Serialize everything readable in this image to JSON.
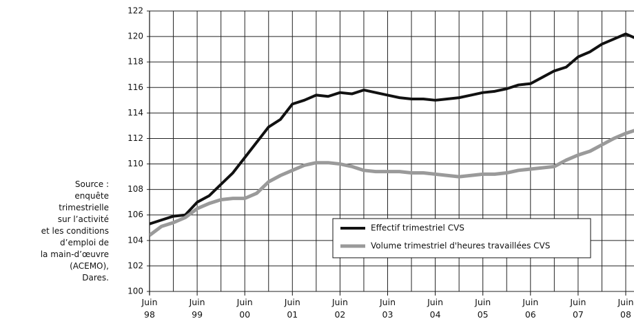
{
  "chart_data": {
    "type": "line",
    "source": "Source :\nenquête\ntrimestrielle\nsur l’activité\net les conditions\nd’emploi de\nla main-d’œuvre\n(ACEMO),\nDares.",
    "categories": [
      "Juin\n98",
      null,
      null,
      null,
      "Juin\n99",
      null,
      null,
      null,
      "Juin\n00",
      null,
      null,
      null,
      "Juin\n01",
      null,
      null,
      null,
      "Juin\n02",
      null,
      null,
      null,
      "Juin\n03",
      null,
      null,
      null,
      "Juin\n04",
      null,
      null,
      null,
      "Juin\n05",
      null,
      null,
      null,
      "Juin\n06",
      null,
      null,
      null,
      "Juin\n07",
      null,
      null,
      null,
      "Juin\n08",
      null
    ],
    "series": [
      {
        "name": "Effectif trimestriel CVS",
        "color": "#111111",
        "values": [
          105.3,
          105.6,
          105.9,
          106.0,
          107.0,
          107.5,
          108.4,
          109.3,
          110.5,
          111.7,
          112.9,
          113.5,
          114.7,
          115.0,
          115.4,
          115.3,
          115.6,
          115.5,
          115.8,
          115.6,
          115.4,
          115.2,
          115.1,
          115.1,
          115.0,
          115.1,
          115.2,
          115.4,
          115.6,
          115.7,
          115.9,
          116.2,
          116.3,
          116.8,
          117.3,
          117.6,
          118.4,
          118.8,
          119.4,
          119.8,
          120.2,
          119.8
        ]
      },
      {
        "name": "Volume trimestriel d'heures travaillées CVS",
        "color": "#9a9a9a",
        "values": [
          104.4,
          105.1,
          105.4,
          105.8,
          106.5,
          106.9,
          107.2,
          107.3,
          107.3,
          107.7,
          108.6,
          109.1,
          109.5,
          109.9,
          110.1,
          110.1,
          110.0,
          109.8,
          109.5,
          109.4,
          109.4,
          109.4,
          109.3,
          109.3,
          109.2,
          109.1,
          109.0,
          109.1,
          109.2,
          109.2,
          109.3,
          109.5,
          109.6,
          109.7,
          109.8,
          110.3,
          110.7,
          111.0,
          111.5,
          112.0,
          112.4,
          112.7
        ]
      }
    ],
    "ylim": [
      100,
      122
    ],
    "yticks": [
      100,
      102,
      104,
      106,
      108,
      110,
      112,
      114,
      116,
      118,
      120,
      122
    ],
    "grid": true
  }
}
